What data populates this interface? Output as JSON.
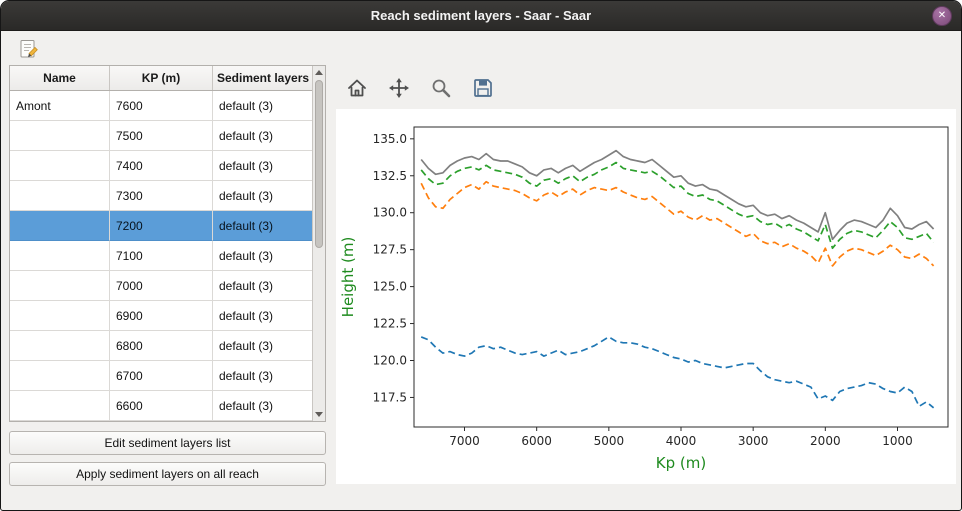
{
  "window": {
    "title": "Reach sediment layers - Saar - Saar",
    "close_glyph": "✕"
  },
  "table": {
    "headers": [
      "Name",
      "KP (m)",
      "Sediment layers"
    ],
    "rows": [
      {
        "name": "Amont",
        "kp": "7600",
        "layers": "default (3)",
        "selected": false
      },
      {
        "name": "",
        "kp": "7500",
        "layers": "default (3)",
        "selected": false
      },
      {
        "name": "",
        "kp": "7400",
        "layers": "default (3)",
        "selected": false
      },
      {
        "name": "",
        "kp": "7300",
        "layers": "default (3)",
        "selected": false
      },
      {
        "name": "",
        "kp": "7200",
        "layers": "default (3)",
        "selected": true
      },
      {
        "name": "",
        "kp": "7100",
        "layers": "default (3)",
        "selected": false
      },
      {
        "name": "",
        "kp": "7000",
        "layers": "default (3)",
        "selected": false
      },
      {
        "name": "",
        "kp": "6900",
        "layers": "default (3)",
        "selected": false
      },
      {
        "name": "",
        "kp": "6800",
        "layers": "default (3)",
        "selected": false
      },
      {
        "name": "",
        "kp": "6700",
        "layers": "default (3)",
        "selected": false
      },
      {
        "name": "",
        "kp": "6600",
        "layers": "default (3)",
        "selected": false
      }
    ]
  },
  "buttons": {
    "edit": "Edit sediment layers list",
    "apply": "Apply sediment layers on all reach"
  },
  "chart_data": {
    "type": "line",
    "title": "",
    "xlabel": "Kp (m)",
    "ylabel": "Height (m)",
    "axis_label_color": "#1f8b1f",
    "tick_color": "#262626",
    "xlim": [
      7700,
      300
    ],
    "ylim": [
      115.5,
      135.8
    ],
    "x_ticks": [
      7000,
      6000,
      5000,
      4000,
      3000,
      2000,
      1000
    ],
    "y_ticks": [
      117.5,
      120.0,
      122.5,
      125.0,
      127.5,
      130.0,
      132.5,
      135.0
    ],
    "x_axis_reversed": true,
    "grid": false,
    "legend": "none",
    "x": [
      7600,
      7500,
      7400,
      7300,
      7200,
      7100,
      7000,
      6900,
      6800,
      6700,
      6600,
      6500,
      6400,
      6300,
      6200,
      6100,
      6000,
      5900,
      5800,
      5700,
      5600,
      5500,
      5400,
      5300,
      5200,
      5100,
      5000,
      4900,
      4800,
      4700,
      4600,
      4500,
      4400,
      4300,
      4200,
      4100,
      4000,
      3900,
      3800,
      3700,
      3600,
      3500,
      3400,
      3300,
      3200,
      3100,
      3000,
      2900,
      2800,
      2700,
      2600,
      2500,
      2400,
      2300,
      2200,
      2100,
      2000,
      1900,
      1800,
      1700,
      1600,
      1500,
      1400,
      1300,
      1200,
      1100,
      1000,
      900,
      800,
      700,
      600,
      500
    ],
    "series": [
      {
        "name": "gray",
        "color": "#808080",
        "style": "solid",
        "values": [
          133.6,
          133.0,
          132.6,
          132.7,
          133.2,
          133.5,
          133.7,
          133.8,
          133.6,
          134.0,
          133.6,
          133.5,
          133.5,
          133.3,
          133.1,
          132.7,
          132.5,
          132.9,
          133.0,
          132.7,
          133.0,
          133.2,
          132.8,
          133.1,
          133.4,
          133.6,
          133.9,
          134.2,
          133.8,
          133.6,
          133.5,
          133.4,
          133.6,
          133.2,
          132.8,
          132.4,
          132.5,
          132.0,
          131.8,
          131.9,
          131.6,
          131.5,
          131.2,
          130.9,
          130.6,
          130.4,
          130.5,
          130.0,
          129.8,
          129.9,
          129.6,
          129.8,
          129.5,
          129.3,
          129.0,
          128.7,
          130.0,
          128.2,
          128.8,
          129.3,
          129.5,
          129.4,
          129.2,
          129.0,
          129.5,
          130.3,
          129.8,
          129.0,
          128.9,
          129.2,
          129.4,
          128.9
        ]
      },
      {
        "name": "green",
        "color": "#2ca02c",
        "style": "dashed",
        "values": [
          132.9,
          132.3,
          131.9,
          132.0,
          132.5,
          132.8,
          133.0,
          133.1,
          132.9,
          133.2,
          132.9,
          132.8,
          132.7,
          132.6,
          132.4,
          132.0,
          131.8,
          132.2,
          132.3,
          132.0,
          132.3,
          132.5,
          132.1,
          132.4,
          132.6,
          132.9,
          133.1,
          133.4,
          133.0,
          132.9,
          132.8,
          132.7,
          132.8,
          132.5,
          132.1,
          131.7,
          131.8,
          131.3,
          131.1,
          131.2,
          130.9,
          130.8,
          130.5,
          130.2,
          129.9,
          129.7,
          129.8,
          129.4,
          129.2,
          129.3,
          129.0,
          129.2,
          128.9,
          128.7,
          128.4,
          128.1,
          129.2,
          127.6,
          128.2,
          128.6,
          128.8,
          128.7,
          128.5,
          128.3,
          128.8,
          129.4,
          129.0,
          128.3,
          128.2,
          128.4,
          128.6,
          128.0
        ]
      },
      {
        "name": "orange",
        "color": "#ff7f0e",
        "style": "dashed",
        "values": [
          132.0,
          131.0,
          130.4,
          130.3,
          130.9,
          131.3,
          131.7,
          131.9,
          131.6,
          132.1,
          131.8,
          131.7,
          131.6,
          131.5,
          131.3,
          131.0,
          130.8,
          131.2,
          131.4,
          131.1,
          131.4,
          131.6,
          131.2,
          131.5,
          131.7,
          131.6,
          131.5,
          131.7,
          131.4,
          131.2,
          131.0,
          130.9,
          131.1,
          130.7,
          130.3,
          129.9,
          130.1,
          129.7,
          129.5,
          129.8,
          129.5,
          129.6,
          129.3,
          129.0,
          128.7,
          128.4,
          128.6,
          128.1,
          127.9,
          128.0,
          127.7,
          127.9,
          127.6,
          127.4,
          127.1,
          126.6,
          127.6,
          126.4,
          127.0,
          127.4,
          127.6,
          127.5,
          127.3,
          127.1,
          127.4,
          127.8,
          127.5,
          127.0,
          126.9,
          127.2,
          126.9,
          126.4
        ]
      },
      {
        "name": "blue",
        "color": "#1f77b4",
        "style": "dashed",
        "values": [
          121.6,
          121.4,
          120.9,
          120.5,
          120.6,
          120.4,
          120.3,
          120.5,
          120.9,
          121.0,
          120.8,
          120.9,
          120.7,
          120.5,
          120.4,
          120.5,
          120.6,
          120.3,
          120.5,
          120.7,
          120.4,
          120.5,
          120.6,
          120.8,
          121.0,
          121.3,
          121.6,
          121.3,
          121.2,
          121.2,
          121.1,
          120.9,
          120.8,
          120.6,
          120.4,
          120.2,
          120.1,
          119.9,
          120.0,
          119.8,
          119.7,
          119.6,
          119.5,
          119.6,
          119.7,
          119.8,
          119.8,
          119.3,
          118.9,
          118.7,
          118.6,
          118.5,
          118.6,
          118.4,
          118.2,
          117.4,
          117.6,
          117.3,
          117.9,
          118.1,
          118.2,
          118.3,
          118.5,
          118.4,
          118.1,
          117.9,
          117.8,
          118.2,
          117.9,
          116.9,
          117.2,
          116.8
        ]
      }
    ]
  }
}
